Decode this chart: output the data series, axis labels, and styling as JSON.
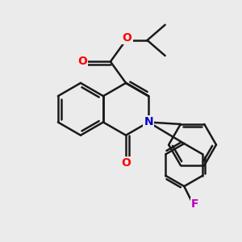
{
  "bg_color": "#ebebeb",
  "bond_color": "#1a1a1a",
  "O_color": "#ff0000",
  "N_color": "#0000cc",
  "F_color": "#bb00bb",
  "bond_width": 1.8,
  "figsize": [
    3.0,
    3.0
  ],
  "dpi": 100,
  "xlim": [
    0,
    10
  ],
  "ylim": [
    0,
    10
  ]
}
